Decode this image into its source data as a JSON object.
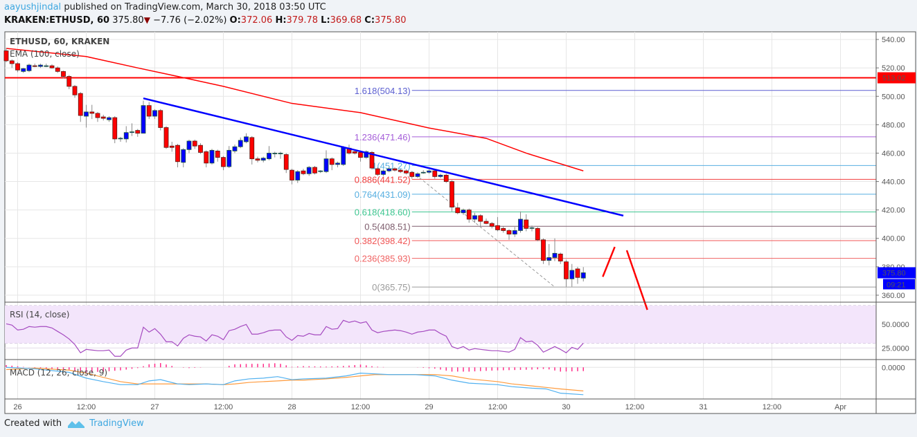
{
  "header": {
    "author": "aayushjindal",
    "published_text": "published on TradingView.com, March 30, 2018 03:50 UTC",
    "symbol": "KRAKEN:ETHUSD, 60",
    "last": "375.80",
    "change": "−7.76 (−2.02%)",
    "o_label": "O:",
    "o": "372.06",
    "h_label": "H:",
    "h": "379.78",
    "l_label": "L:",
    "l": "369.68",
    "c_label": "C:",
    "c": "375.80",
    "direction_icon": "triangle-down-icon"
  },
  "footer": {
    "created_with": "Created with",
    "brand": "TradingView",
    "logo_icon": "tradingview-logo-icon"
  },
  "colors": {
    "up": "#0000ff",
    "down": "#ff0000",
    "ema": "#ff0000",
    "trendline": "#0000ff",
    "resistance": "#ff0000",
    "rsi": "#a54ac0",
    "rsi_band": "#f3e5fb",
    "macd": "#4fb0f0",
    "signal": "#ff9a3c",
    "histogram": "#ff2e8a"
  },
  "chart_data": {
    "type": "candlestick",
    "title": "ETHUSD, 60, KRAKEN",
    "ylim": [
      355.1,
      545.4
    ],
    "price_ticks": [
      "540.00",
      "520.00",
      "500.00",
      "480.00",
      "460.00",
      "440.00",
      "420.00",
      "400.00",
      "380.00",
      "360.00"
    ],
    "time_ticks": [
      {
        "label": "26",
        "time": "03-26 00:00"
      },
      {
        "label": "12:00",
        "time": "03-26 12:00"
      },
      {
        "label": "27",
        "time": "03-27 00:00"
      },
      {
        "label": "12:00",
        "time": "03-27 12:00"
      },
      {
        "label": "28",
        "time": "03-28 00:00"
      },
      {
        "label": "12:00",
        "time": "03-28 12:00"
      },
      {
        "label": "29",
        "time": "03-29 00:00"
      },
      {
        "label": "12:00",
        "time": "03-29 12:00"
      },
      {
        "label": "30",
        "time": "03-30 00:00"
      },
      {
        "label": "12:00",
        "time": "03-30 12:00"
      },
      {
        "label": "31",
        "time": "03-31 00:00"
      },
      {
        "label": "12:00",
        "time": "03-31 12:00"
      },
      {
        "label": "Apr",
        "time": "04-01 00:00"
      }
    ],
    "candles_columns": [
      "time",
      "open",
      "high",
      "low",
      "close"
    ],
    "candles": [
      [
        "03-25 22:00",
        532,
        534,
        524,
        525
      ],
      [
        "03-25 23:00",
        525,
        526,
        520,
        523
      ],
      [
        "03-26 00:00",
        523,
        524,
        517,
        518.5
      ],
      [
        "03-26 01:00",
        517.5,
        520,
        516.5,
        519.5
      ],
      [
        "03-26 02:00",
        518,
        523,
        517,
        522
      ],
      [
        "03-26 03:00",
        521.5,
        523,
        520.5,
        521
      ],
      [
        "03-26 04:00",
        521,
        523,
        520,
        522
      ],
      [
        "03-26 05:00",
        521.5,
        523,
        520.5,
        521.5
      ],
      [
        "03-26 06:00",
        521.5,
        522.5,
        519.5,
        520
      ],
      [
        "03-26 07:00",
        520,
        521,
        516.5,
        517.5
      ],
      [
        "03-26 08:00",
        517.5,
        518,
        512.5,
        514
      ],
      [
        "03-26 09:00",
        514,
        515,
        505,
        507
      ],
      [
        "03-26 10:00",
        507,
        508,
        499,
        501
      ],
      [
        "03-26 11:00",
        502,
        503,
        482,
        486.5
      ],
      [
        "03-26 12:00",
        486,
        494,
        478,
        489
      ],
      [
        "03-26 13:00",
        489,
        494,
        484,
        488
      ],
      [
        "03-26 14:00",
        488,
        489,
        482,
        485
      ],
      [
        "03-26 15:00",
        485.5,
        487,
        483,
        484.5
      ],
      [
        "03-26 16:00",
        483.5,
        486,
        482,
        485
      ],
      [
        "03-26 17:00",
        485,
        486,
        467,
        470
      ],
      [
        "03-26 18:00",
        470.5,
        471.5,
        468,
        470.5
      ],
      [
        "03-26 19:00",
        470,
        479,
        467.5,
        474.5
      ],
      [
        "03-26 20:00",
        474.5,
        481,
        472,
        475
      ],
      [
        "03-26 21:00",
        476,
        477,
        471.5,
        474
      ],
      [
        "03-26 22:00",
        474,
        497,
        474,
        493.5
      ],
      [
        "03-26 23:00",
        493.5,
        496,
        484,
        486
      ],
      [
        "03-27 00:00",
        486,
        491,
        484,
        490
      ],
      [
        "03-27 01:00",
        490,
        491,
        476,
        478
      ],
      [
        "03-27 02:00",
        478,
        479,
        463,
        464
      ],
      [
        "03-27 03:00",
        465,
        468,
        461,
        464
      ],
      [
        "03-27 04:00",
        465.5,
        466.5,
        450,
        454
      ],
      [
        "03-27 05:00",
        453.5,
        463.5,
        450,
        462.5
      ],
      [
        "03-27 06:00",
        462.5,
        469.5,
        460,
        468.5
      ],
      [
        "03-27 07:00",
        468.5,
        469.5,
        463,
        465
      ],
      [
        "03-27 08:00",
        465.5,
        467,
        459.5,
        460.5
      ],
      [
        "03-27 09:00",
        461,
        462,
        450,
        453
      ],
      [
        "03-27 10:00",
        453,
        463,
        452,
        462
      ],
      [
        "03-27 11:00",
        461.5,
        462.5,
        454,
        457
      ],
      [
        "03-27 12:00",
        457,
        458,
        448,
        450.5
      ],
      [
        "03-27 13:00",
        450.5,
        465,
        449.5,
        462
      ],
      [
        "03-27 14:00",
        461.5,
        466,
        460,
        464.5
      ],
      [
        "03-27 15:00",
        464.5,
        471,
        463.5,
        469
      ],
      [
        "03-27 16:00",
        468,
        474,
        467,
        471.5
      ],
      [
        "03-27 17:00",
        471,
        472,
        452,
        456
      ],
      [
        "03-27 18:00",
        456,
        457.5,
        453.5,
        455
      ],
      [
        "03-27 19:00",
        455,
        457.5,
        453.5,
        456.5
      ],
      [
        "03-27 20:00",
        456,
        465,
        455,
        460
      ],
      [
        "03-27 21:00",
        460,
        461,
        457,
        460
      ],
      [
        "03-27 22:00",
        460,
        461,
        456,
        460
      ],
      [
        "03-27 23:00",
        459,
        460,
        446,
        448.5
      ],
      [
        "03-28 00:00",
        448,
        449,
        438,
        441
      ],
      [
        "03-28 01:00",
        441,
        448,
        439,
        447
      ],
      [
        "03-28 02:00",
        447.5,
        449,
        444.5,
        445.5
      ],
      [
        "03-28 03:00",
        445.5,
        451,
        444,
        450
      ],
      [
        "03-28 04:00",
        450,
        451,
        445,
        446
      ],
      [
        "03-28 05:00",
        447,
        448,
        446,
        447.5
      ],
      [
        "03-28 06:00",
        447,
        462,
        446,
        456
      ],
      [
        "03-28 07:00",
        456,
        457,
        448,
        452
      ],
      [
        "03-28 08:00",
        452,
        454,
        450,
        453
      ],
      [
        "03-28 09:00",
        452,
        465,
        451,
        464
      ],
      [
        "03-28 10:00",
        463.5,
        466,
        459,
        460
      ],
      [
        "03-28 11:00",
        461,
        462,
        459,
        460
      ],
      [
        "03-28 12:00",
        460.5,
        461.5,
        454,
        457
      ],
      [
        "03-28 13:00",
        457,
        462,
        456,
        461
      ],
      [
        "03-28 14:00",
        460.5,
        461.5,
        448.5,
        449.5
      ],
      [
        "03-28 15:00",
        449,
        450,
        444,
        445
      ],
      [
        "03-28 16:00",
        445,
        448.5,
        444,
        447.5
      ],
      [
        "03-28 17:00",
        447.5,
        450,
        446.5,
        449
      ],
      [
        "03-28 18:00",
        449,
        450,
        447,
        448
      ],
      [
        "03-28 19:00",
        448,
        449,
        446,
        447
      ],
      [
        "03-28 20:00",
        447.5,
        448.5,
        445,
        446
      ],
      [
        "03-28 21:00",
        446.5,
        447.5,
        442,
        443.5
      ],
      [
        "03-28 22:00",
        443.5,
        446.5,
        442.5,
        445.5
      ],
      [
        "03-28 23:00",
        446.5,
        448,
        445.5,
        446.5
      ],
      [
        "03-29 00:00",
        446.5,
        448.5,
        445.5,
        447.5
      ],
      [
        "03-29 01:00",
        447.5,
        448.5,
        442,
        443.5
      ],
      [
        "03-29 02:00",
        443.5,
        445.5,
        442.5,
        444.5
      ],
      [
        "03-29 03:00",
        444.5,
        445.5,
        439,
        440
      ],
      [
        "03-29 04:00",
        440,
        441,
        419,
        422
      ],
      [
        "03-29 05:00",
        421.5,
        425,
        417,
        418
      ],
      [
        "03-29 06:00",
        418,
        421,
        416.5,
        420
      ],
      [
        "03-29 07:00",
        420,
        421,
        411,
        413.5
      ],
      [
        "03-29 08:00",
        413.5,
        418,
        411,
        416
      ],
      [
        "03-29 09:00",
        416,
        417,
        408,
        412
      ],
      [
        "03-29 10:00",
        412,
        414,
        410,
        410.5
      ],
      [
        "03-29 11:00",
        410.5,
        411.5,
        407,
        408.5
      ],
      [
        "03-29 12:00",
        409,
        415,
        405,
        406
      ],
      [
        "03-29 13:00",
        407,
        408.5,
        404,
        405.5
      ],
      [
        "03-29 14:00",
        405.5,
        406.5,
        399,
        403
      ],
      [
        "03-29 15:00",
        403,
        408,
        401,
        405.5
      ],
      [
        "03-29 16:00",
        405.5,
        419,
        404,
        413.5
      ],
      [
        "03-29 17:00",
        413,
        417,
        405,
        407
      ],
      [
        "03-29 18:00",
        407.5,
        409,
        405,
        407.5
      ],
      [
        "03-29 19:00",
        407,
        408,
        398,
        399
      ],
      [
        "03-29 20:00",
        399,
        400,
        382,
        384.5
      ],
      [
        "03-29 21:00",
        384.5,
        396,
        381,
        386.5
      ],
      [
        "03-29 22:00",
        386.5,
        400,
        384,
        389.5
      ],
      [
        "03-29 23:00",
        389,
        390,
        382,
        384
      ],
      [
        "03-30 00:00",
        383.5,
        385,
        366,
        371.5
      ],
      [
        "03-30 01:00",
        371.5,
        382,
        366,
        377.5
      ],
      [
        "03-30 02:00",
        378.5,
        380,
        368,
        372.5
      ],
      [
        "03-30 03:00",
        372.06,
        379.78,
        369.68,
        375.8
      ]
    ],
    "ema": {
      "label": "EMA (100, close)",
      "points": [
        [
          "03-25 22:00",
          533.7
        ],
        [
          "03-26 12:00",
          528
        ],
        [
          "03-26 21:00",
          520
        ],
        [
          "03-27 04:00",
          514
        ],
        [
          "03-27 12:00",
          507
        ],
        [
          "03-28 00:00",
          495
        ],
        [
          "03-28 12:00",
          488.5
        ],
        [
          "03-29 00:00",
          477.7
        ],
        [
          "03-29 10:00",
          470.4
        ],
        [
          "03-29 17:00",
          460
        ],
        [
          "03-30 03:00",
          447.5
        ]
      ]
    },
    "resistance_line": {
      "price": 513.02,
      "label": "513.02"
    },
    "trendline": {
      "from": [
        "03-26 22:00",
        498.6
      ],
      "to": [
        "03-30 10:00",
        416
      ]
    },
    "fib_swing_line": {
      "from": [
        "03-28 21:00",
        447
      ],
      "to": [
        "03-29 22:00",
        365.75
      ]
    },
    "fib_start": "03-28 21:00",
    "fib_levels": [
      {
        "level": 1.618,
        "price": 504.13,
        "label": "1.618(504.13)",
        "color": "#5b5fd0"
      },
      {
        "level": 1.236,
        "price": 471.46,
        "label": "1.236(471.46)",
        "color": "#a45cd8"
      },
      {
        "level": 1,
        "price": 451.27,
        "label": "1(451.27)",
        "color": "#55aee0"
      },
      {
        "level": 0.886,
        "price": 441.52,
        "label": "0.886(441.52)",
        "color": "#f23c3c"
      },
      {
        "level": 0.764,
        "price": 431.09,
        "label": "0.764(431.09)",
        "color": "#55aee0"
      },
      {
        "level": 0.618,
        "price": 418.6,
        "label": "0.618(418.60)",
        "color": "#3cc58f"
      },
      {
        "level": 0.5,
        "price": 408.51,
        "label": "0.5(408.51)",
        "color": "#7d5c6c"
      },
      {
        "level": 0.382,
        "price": 398.42,
        "label": "0.382(398.42)",
        "color": "#f05555"
      },
      {
        "level": 0.236,
        "price": 385.93,
        "label": "0.236(385.93)",
        "color": "#f06262"
      },
      {
        "level": 0,
        "price": 365.75,
        "label": "0(365.75)",
        "color": "#9a9a9a"
      }
    ],
    "projection_arrows": [
      [
        [
          "03-30 06:24",
          373
        ],
        [
          "03-30 08:30",
          394
        ]
      ],
      [
        [
          "03-30 10:36",
          391.6
        ],
        [
          "03-30 14:12",
          349.7
        ]
      ]
    ],
    "last_price_label": "375.80",
    "countdown_label": "09:21",
    "rsi": {
      "label": "RSI (14, close)",
      "ylim": [
        12.7,
        73.7
      ],
      "band": [
        30,
        70
      ],
      "ticks": [
        "50.0000",
        "25.0000"
      ],
      "tick_values": [
        50,
        25
      ],
      "values": [
        50.7,
        49.3,
        44.1,
        44.9,
        47.8,
        47.1,
        47.8,
        47.8,
        46.3,
        42.6,
        39,
        34.6,
        28.7,
        19.9,
        23.5,
        22.8,
        22.1,
        22.1,
        22.8,
        16.2,
        16.2,
        22.8,
        25,
        25,
        47.1,
        41.9,
        45.6,
        39.7,
        31.6,
        31.6,
        27.2,
        35.3,
        39,
        37.5,
        36.8,
        32.4,
        39,
        37.5,
        33.8,
        43.4,
        44.9,
        47.8,
        50,
        39.7,
        39.7,
        41.2,
        43.4,
        44.1,
        44.1,
        36.8,
        33.1,
        38.2,
        37.5,
        40.4,
        39,
        39,
        47.8,
        44.9,
        45.6,
        54.4,
        52.2,
        53.7,
        51.5,
        52.9,
        44.1,
        41.2,
        42.6,
        43.4,
        44.1,
        43.4,
        41.9,
        39.7,
        41.9,
        42.6,
        44.1,
        44.1,
        40.4,
        37.5,
        26.5,
        24.3,
        26.5,
        22.8,
        24.3,
        23.5,
        22.8,
        22.1,
        22.1,
        21.3,
        20.6,
        23.5,
        36,
        31.6,
        32.4,
        27.9,
        20.6,
        23.5,
        26.5,
        23.5,
        19.9,
        25.7,
        23.5,
        30.1
      ]
    },
    "macd": {
      "label": "MACD (12, 26, close, 9)",
      "ylim": [
        -12.6,
        3.1
      ],
      "ticks": [
        "0.0000"
      ],
      "times": [
        "03-25 22:00",
        "03-26 03:00",
        "03-26 09:00",
        "03-26 12:00",
        "03-26 15:00",
        "03-26 18:00",
        "03-26 21:00",
        "03-26 23:00",
        "03-27 01:00",
        "03-27 04:00",
        "03-27 06:00",
        "03-27 09:00",
        "03-27 12:00",
        "03-27 14:00",
        "03-27 16:30",
        "03-27 19:00",
        "03-27 21:30",
        "03-28 00:00",
        "03-28 02:00",
        "03-28 06:00",
        "03-28 09:30",
        "03-28 12:00",
        "03-28 14:30",
        "03-28 17:00",
        "03-28 21:30",
        "03-29 01:00",
        "03-29 04:00",
        "03-29 07:00",
        "03-29 12:00",
        "03-29 14:30",
        "03-29 18:00",
        "03-29 20:30",
        "03-29 23:00",
        "03-30 03:00"
      ],
      "macd": [
        0,
        -0.6,
        -2,
        -4.3,
        -5.7,
        -6.9,
        -6.9,
        -5.4,
        -4.9,
        -6.6,
        -6.9,
        -6.6,
        -6.9,
        -5.4,
        -4.6,
        -4.3,
        -3.7,
        -4.9,
        -4.6,
        -4.3,
        -3.4,
        -2.3,
        -2.6,
        -2.9,
        -2.9,
        -3.4,
        -5.1,
        -6.3,
        -6.9,
        -7.7,
        -8.3,
        -8.6,
        -10.3,
        -10.9
      ],
      "signal": [
        -0.9,
        -0.3,
        -1.1,
        -2.3,
        -4,
        -5.7,
        -6.6,
        -6.6,
        -6.6,
        -6.6,
        -6.6,
        -6.6,
        -6.9,
        -6.6,
        -6,
        -5.7,
        -5.4,
        -5.1,
        -5.1,
        -4.6,
        -4,
        -3.4,
        -2.9,
        -2.9,
        -2.9,
        -2.9,
        -3.4,
        -4.6,
        -5.7,
        -6.6,
        -7.4,
        -8,
        -8.6,
        -9.4
      ]
    }
  }
}
